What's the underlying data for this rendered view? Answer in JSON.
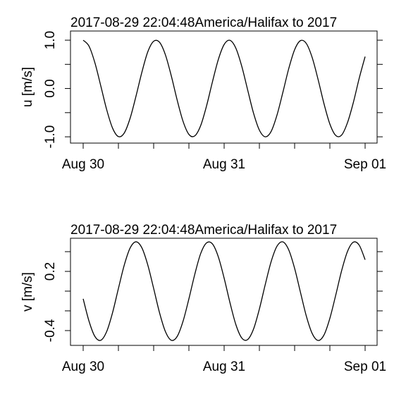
{
  "chart_data": [
    {
      "type": "line",
      "title": "2017-08-29 22:04:48America/Halifax to 2017",
      "ylabel": "u [m/s]",
      "x": [
        0,
        1,
        2,
        3,
        4,
        5,
        6,
        7,
        8,
        9,
        10,
        11,
        12,
        13,
        14,
        15,
        16,
        17,
        18,
        19,
        20,
        21,
        22,
        23,
        24,
        25,
        26,
        27,
        28,
        29,
        30,
        31,
        32,
        33,
        34,
        35,
        36,
        37,
        38,
        39,
        40,
        41,
        42,
        43,
        44,
        45,
        46,
        47,
        48
      ],
      "values": [
        1.0,
        0.875,
        0.53,
        0.053,
        -0.437,
        -0.819,
        -0.995,
        -0.92,
        -0.612,
        -0.155,
        0.339,
        0.759,
        0.978,
        0.957,
        0.697,
        0.262,
        -0.238,
        -0.679,
        -0.95,
        -0.981,
        -0.769,
        -0.362,
        0.134,
        0.597,
        0.911,
        0.997,
        0.833,
        0.46,
        -0.028,
        -0.509,
        -0.862,
        -1.0,
        -0.888,
        -0.549,
        -0.079,
        0.413,
        0.804,
        0.991,
        0.93,
        0.636,
        0.183,
        -0.316,
        -0.736,
        -0.972,
        -0.964,
        -0.706,
        -0.288,
        0.214,
        0.66
      ],
      "color": "#000000",
      "xlim": [
        -2.16,
        50.04
      ],
      "xticks": [
        {
          "value": 0,
          "label": "Aug 30"
        },
        {
          "value": 24,
          "label": "Aug 31"
        },
        {
          "value": 48,
          "label": "Sep 01"
        }
      ],
      "xminorticks": [
        6,
        12,
        18,
        30,
        36,
        42
      ],
      "ylim": [
        -1.13,
        1.19
      ],
      "yticks": [
        {
          "value": -1,
          "label": "-1.0"
        },
        {
          "value": 0,
          "label": "0.0"
        },
        {
          "value": 1,
          "label": "1.0"
        }
      ],
      "yminorticks": [
        -0.5,
        0.5
      ]
    },
    {
      "type": "line",
      "title": "2017-08-29 22:04:48America/Halifax to 2017",
      "ylabel": "v [m/s]",
      "x": [
        0,
        1,
        2,
        3,
        4,
        5,
        6,
        7,
        8,
        9,
        10,
        11,
        12,
        13,
        14,
        15,
        16,
        17,
        18,
        19,
        20,
        21,
        22,
        23,
        24,
        25,
        26,
        27,
        28,
        29,
        30,
        31,
        32,
        33,
        34,
        35,
        36,
        37,
        38,
        39,
        40,
        41,
        42,
        43,
        44,
        45,
        46,
        47,
        48
      ],
      "values": [
        -0.078,
        -0.306,
        -0.46,
        -0.498,
        -0.41,
        -0.219,
        0.027,
        0.265,
        0.438,
        0.5,
        0.438,
        0.265,
        0.027,
        -0.219,
        -0.41,
        -0.498,
        -0.46,
        -0.306,
        -0.078,
        0.17,
        0.38,
        0.489,
        0.479,
        0.349,
        0.131,
        -0.119,
        -0.34,
        -0.475,
        -0.491,
        -0.385,
        -0.181,
        0.067,
        0.299,
        0.456,
        0.499,
        0.417,
        0.23,
        -0.014,
        -0.255,
        -0.431,
        -0.5,
        -0.444,
        -0.275,
        -0.04,
        0.207,
        0.402,
        0.496,
        0.465,
        0.318
      ],
      "color": "#000000",
      "xlim": [
        -2.16,
        50.04
      ],
      "xticks": [
        {
          "value": 0,
          "label": "Aug 30"
        },
        {
          "value": 24,
          "label": "Aug 31"
        },
        {
          "value": 48,
          "label": "Sep 01"
        }
      ],
      "xminorticks": [
        6,
        12,
        18,
        30,
        36,
        42
      ],
      "ylim": [
        -0.55,
        0.536
      ],
      "yticks": [
        {
          "value": -0.4,
          "label": "-0.4"
        },
        {
          "value": 0.2,
          "label": "0.2"
        }
      ],
      "yminorticks": [
        -0.2,
        0,
        0.4
      ]
    }
  ]
}
